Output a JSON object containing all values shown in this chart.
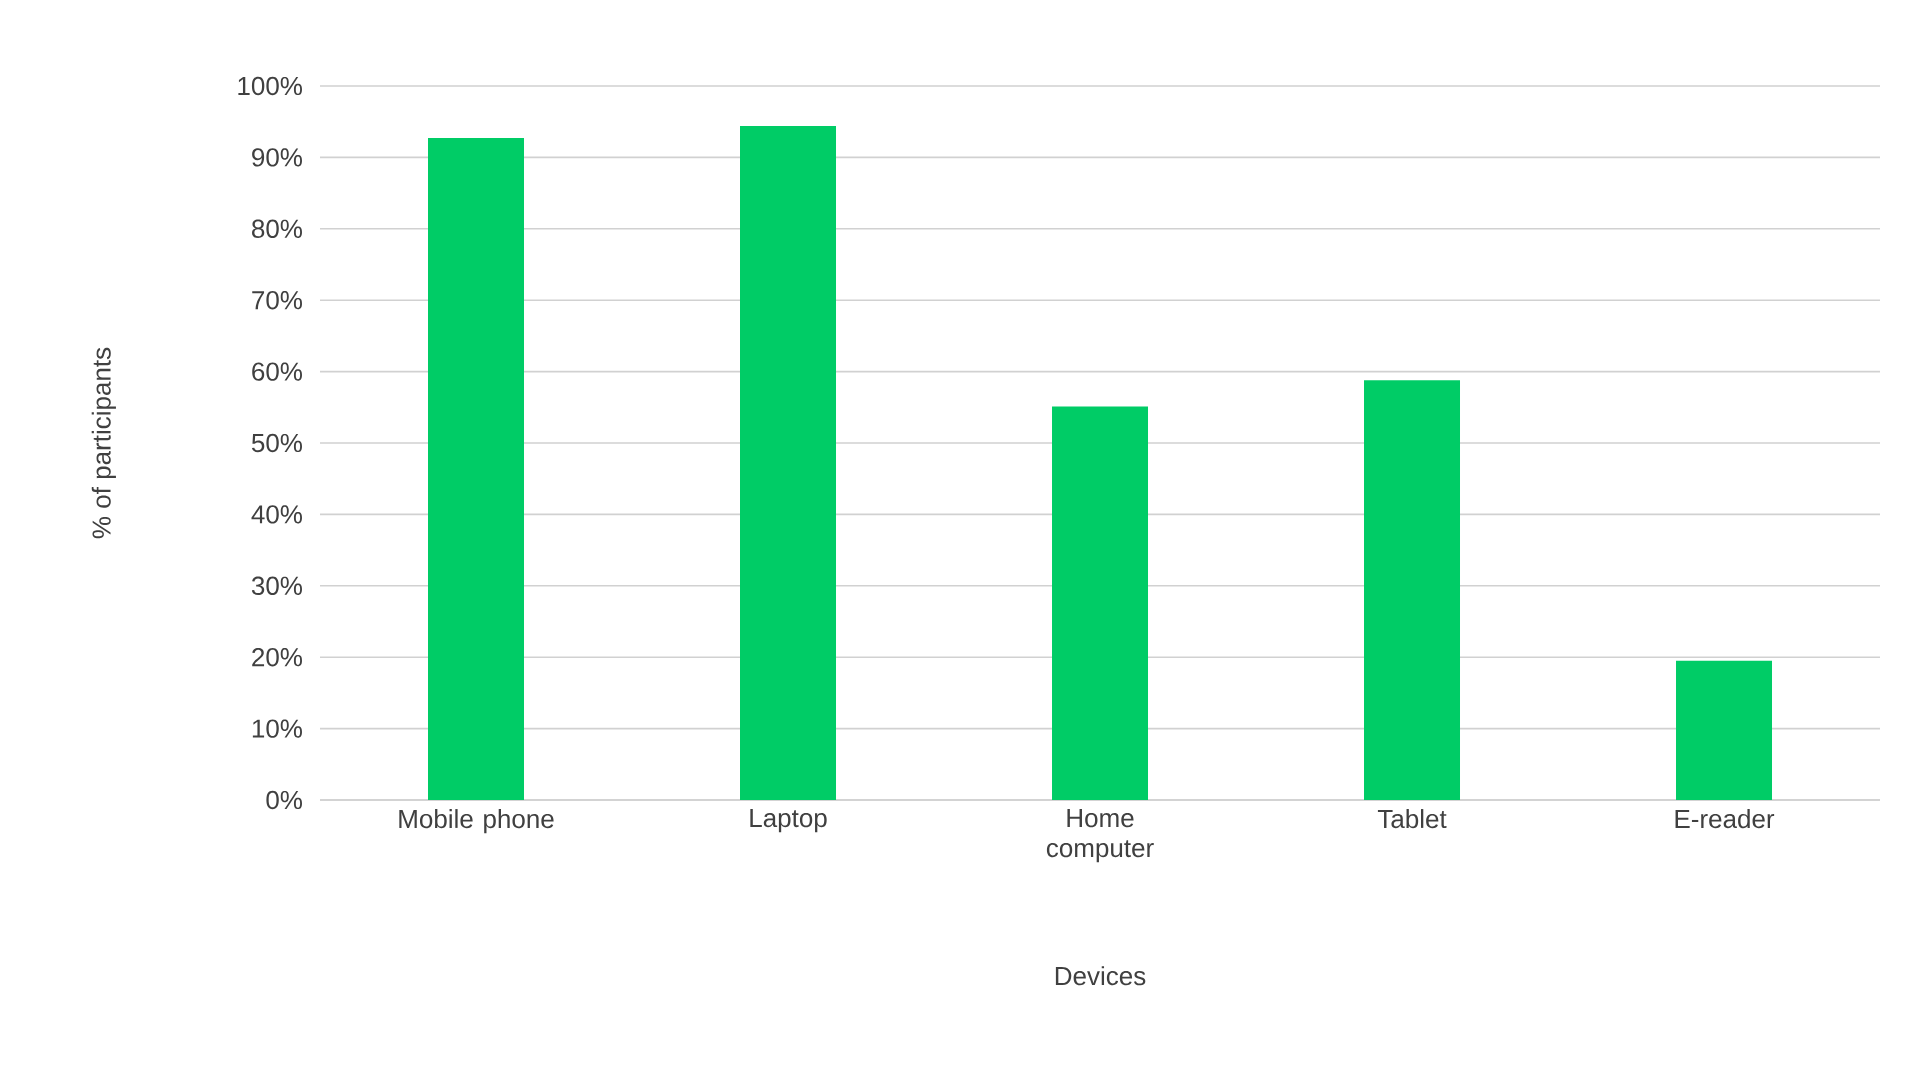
{
  "chart_data": {
    "type": "bar",
    "xlabel": "Devices",
    "ylabel": "% of participants",
    "categories": [
      "Mobile phone",
      "Laptop",
      "Home computer",
      "Tablet",
      "E-reader"
    ],
    "values": [
      92.7,
      94.4,
      55.1,
      58.8,
      19.5
    ],
    "color": "#00cc66",
    "ylim": [
      0,
      100
    ],
    "yticks": [
      {
        "value": 0,
        "label": "0%"
      },
      {
        "value": 10,
        "label": "10%"
      },
      {
        "value": 20,
        "label": "20%"
      },
      {
        "value": 30,
        "label": "30%"
      },
      {
        "value": 40,
        "label": "40%"
      },
      {
        "value": 50,
        "label": "50%"
      },
      {
        "value": 60,
        "label": "60%"
      },
      {
        "value": 70,
        "label": "70%"
      },
      {
        "value": 80,
        "label": "80%"
      },
      {
        "value": 90,
        "label": "90%"
      },
      {
        "value": 100,
        "label": "100%"
      }
    ],
    "grid": "y"
  }
}
